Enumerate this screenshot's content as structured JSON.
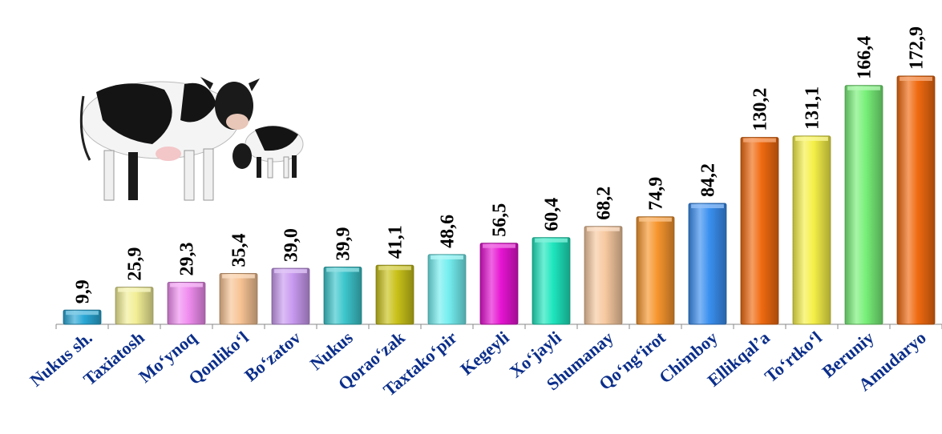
{
  "chart_data": {
    "type": "bar",
    "categories": [
      "Nukus sh.",
      "Taxiatosh",
      "Mo‘ynoq",
      "Qonliko‘l",
      "Bo‘zatov",
      "Nukus",
      "Qorao‘zak",
      "Taxtako‘pir",
      "Kegeyli",
      "Xo‘jayli",
      "Shumanay",
      "Qo‘ng‘irot",
      "Chimboy",
      "Ellikqal’a",
      "To‘rtko‘l",
      "Beruniy",
      "Amudaryo"
    ],
    "values": [
      9.9,
      25.9,
      29.3,
      35.4,
      39.0,
      39.9,
      41.1,
      48.6,
      56.5,
      60.4,
      68.2,
      74.9,
      84.2,
      130.2,
      131.1,
      166.4,
      172.9
    ],
    "value_labels": [
      "9,9",
      "25,9",
      "29,3",
      "35,4",
      "39,0",
      "39,9",
      "41,1",
      "48,6",
      "56,5",
      "60,4",
      "68,2",
      "74,9",
      "84,2",
      "130,2",
      "131,1",
      "166,4",
      "172,9"
    ],
    "colors": [
      "#2aa8d6",
      "#f2ee96",
      "#f08ef0",
      "#f7c394",
      "#c99af0",
      "#3cc6cc",
      "#c9c21a",
      "#74eef0",
      "#e614d2",
      "#1ee6be",
      "#f7c9a0",
      "#f7962e",
      "#3a8ff0",
      "#f06a10",
      "#f5f048",
      "#78f078",
      "#f06a10"
    ],
    "ylim": [
      0,
      180
    ],
    "xlabel": "",
    "ylabel": "",
    "grid": false
  }
}
